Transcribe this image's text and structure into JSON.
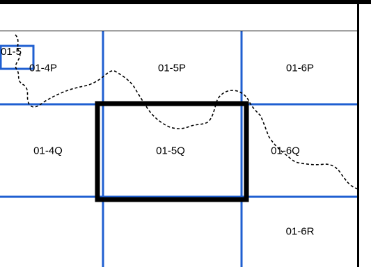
{
  "map": {
    "cells": [
      {
        "id": "01-4P",
        "label": "01-4P"
      },
      {
        "id": "01-5P",
        "label": "01-5P"
      },
      {
        "id": "01-6P",
        "label": "01-6P"
      },
      {
        "id": "01-4Q",
        "label": "01-4Q"
      },
      {
        "id": "01-5Q",
        "label": "01-5Q"
      },
      {
        "id": "01-6Q",
        "label": "01-6Q"
      },
      {
        "id": "01-6R",
        "label": "01-6R"
      }
    ],
    "inset_label": "01-5",
    "selected_cell": "01-5Q",
    "colors": {
      "grid": "#1f5fd1",
      "selection": "#000000",
      "boundary": "#000000",
      "seal_blue": "#1d3f8f"
    },
    "icons": [
      "dashed-boundary-line",
      "seal-emblem"
    ]
  }
}
